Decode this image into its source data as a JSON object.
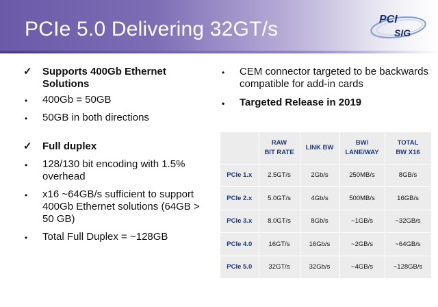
{
  "slide": {
    "title": "PCIe 5.0 Delivering 32GT/s"
  },
  "logo": {
    "line1": "PCI",
    "line2": "SIG"
  },
  "left": {
    "check1": "Supports 400Gb Ethernet Solutions",
    "bullet1": "400Gb = 50GB",
    "bullet2": "50GB in both directions",
    "check2": "Full duplex",
    "bullet3": "128/130 bit encoding with 1.5% overhead",
    "bullet4": "x16 ~64GB/s sufficient to support 400Gb Ethernet solutions (64GB > 50 GB)",
    "bullet5": "Total Full Duplex = ~128GB"
  },
  "right": {
    "bullet1": "CEM connector targeted to be backwards compatible for add-in cards",
    "bullet2": "Targeted Release in 2019"
  },
  "marks": {
    "check": "✓",
    "bullet": "•"
  },
  "table": {
    "headers": [
      "",
      "RAW\nBIT RATE",
      "LINK BW",
      "BW/\nLANE/WAY",
      "TOTAL\nBW X16"
    ],
    "rows": [
      [
        "PCIe 1.x",
        "2.5GT/s",
        "2Gb/s",
        "250MB/s",
        "8GB/s"
      ],
      [
        "PCIe 2.x",
        "5.0GT/s",
        "4Gb/s",
        "500MB/s",
        "16GB/s"
      ],
      [
        "PCIe 3.x",
        "8.0GT/s",
        "8Gb/s",
        "~1GB/s",
        "~32GB/s"
      ],
      [
        "PCIe 4.0",
        "16GT/s",
        "16Gb/s",
        "~2GB/s",
        "~64GB/s"
      ],
      [
        "PCIe 5.0",
        "32GT/s",
        "32Gb/s",
        "~4GB/s",
        "~128GB/s"
      ]
    ]
  },
  "colors": {
    "header_dark": "#6a5aa8",
    "table_header_text": "#1d3a7a",
    "table_bg": "#ececec"
  }
}
